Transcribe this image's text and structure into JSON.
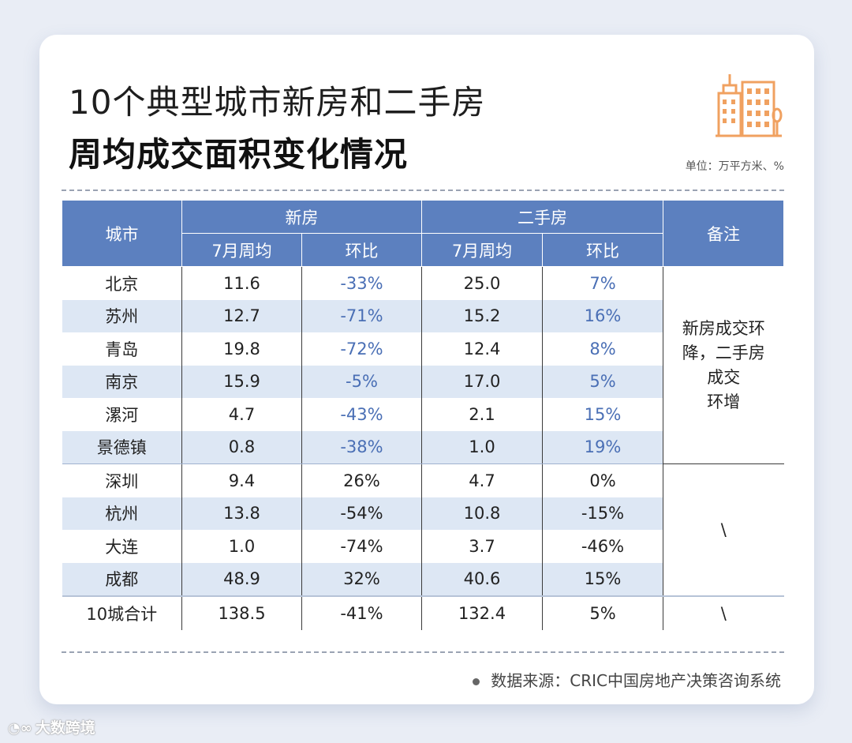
{
  "title": {
    "line1": "10个典型城市新房和二手房",
    "line2": "周均成交面积变化情况"
  },
  "unit": "单位：万平方米、%",
  "icon": "building-icon",
  "colors": {
    "header": "#5c80bf",
    "alt_row": "#dde7f4",
    "highlight_text": "#4a6fb5",
    "icon": "#f0a160"
  },
  "table": {
    "headers": {
      "city": "城市",
      "new_house": "新房",
      "second_hand": "二手房",
      "note": "备注",
      "weekly_avg_new": "7月周均",
      "mom_new": "环比",
      "weekly_avg_second": "7月周均",
      "mom_second": "环比"
    },
    "rows": [
      {
        "city": "北京",
        "new_avg": "11.6",
        "new_mom": "-33%",
        "sec_avg": "25.0",
        "sec_mom": "7%"
      },
      {
        "city": "苏州",
        "new_avg": "12.7",
        "new_mom": "-71%",
        "sec_avg": "15.2",
        "sec_mom": "16%"
      },
      {
        "city": "青岛",
        "new_avg": "19.8",
        "new_mom": "-72%",
        "sec_avg": "12.4",
        "sec_mom": "8%"
      },
      {
        "city": "南京",
        "new_avg": "15.9",
        "new_mom": "-5%",
        "sec_avg": "17.0",
        "sec_mom": "5%"
      },
      {
        "city": "漯河",
        "new_avg": "4.7",
        "new_mom": "-43%",
        "sec_avg": "2.1",
        "sec_mom": "15%"
      },
      {
        "city": "景德镇",
        "new_avg": "0.8",
        "new_mom": "-38%",
        "sec_avg": "1.0",
        "sec_mom": "19%"
      },
      {
        "city": "深圳",
        "new_avg": "9.4",
        "new_mom": "26%",
        "sec_avg": "4.7",
        "sec_mom": "0%"
      },
      {
        "city": "杭州",
        "new_avg": "13.8",
        "new_mom": "-54%",
        "sec_avg": "10.8",
        "sec_mom": "-15%"
      },
      {
        "city": "大连",
        "new_avg": "1.0",
        "new_mom": "-74%",
        "sec_avg": "3.7",
        "sec_mom": "-46%"
      },
      {
        "city": "成都",
        "new_avg": "48.9",
        "new_mom": "32%",
        "sec_avg": "40.6",
        "sec_mom": "15%"
      }
    ],
    "notes": {
      "group1_line1": "新房成交环",
      "group1_line2": "降，二手房",
      "group1_line3": "成交",
      "group1_line4": "环增",
      "group2": "\\",
      "total": "\\"
    },
    "total": {
      "city": "10城合计",
      "new_avg": "138.5",
      "new_mom": "-41%",
      "sec_avg": "132.4",
      "sec_mom": "5%"
    }
  },
  "source": "数据来源：CRIC中国房地产决策咨询系统",
  "brand": "大数跨境"
}
